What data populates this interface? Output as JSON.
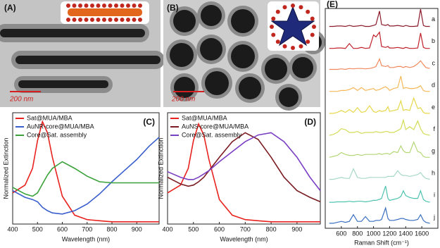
{
  "images": [
    {
      "label": "(A)",
      "scale_bar": "200 nm"
    },
    {
      "label": "(B)",
      "scale_bar": "200 nm"
    }
  ],
  "chart_data": [
    {
      "type": "line",
      "label": "(C)",
      "xlabel": "Wavelength (nm)",
      "ylabel": "Normalized Extinction",
      "x": [
        400,
        450,
        480,
        500,
        520,
        540,
        560,
        600,
        650,
        700,
        750,
        800,
        850,
        900,
        950,
        990
      ],
      "xlim": [
        400,
        990
      ],
      "xticks": [
        400,
        500,
        600,
        700,
        800,
        900
      ],
      "ylim": [
        0,
        1
      ],
      "legend": "upper left",
      "series": [
        {
          "name": "Sat@MUA/MBA",
          "color": "#e8231f",
          "values": [
            0.28,
            0.35,
            0.5,
            0.75,
            0.92,
            0.82,
            0.6,
            0.25,
            0.08,
            0.04,
            0.03,
            0.02,
            0.02,
            0.02,
            0.02,
            0.02
          ]
        },
        {
          "name": "AuNR-core@MUA/MBA",
          "color": "#3a5fcd",
          "values": [
            0.3,
            0.24,
            0.22,
            0.2,
            0.15,
            0.12,
            0.1,
            0.09,
            0.12,
            0.18,
            0.27,
            0.38,
            0.48,
            0.58,
            0.7,
            0.78
          ]
        },
        {
          "name": "Core@Sat. assembly",
          "color": "#3aa23a",
          "values": [
            0.33,
            0.27,
            0.25,
            0.28,
            0.36,
            0.44,
            0.5,
            0.56,
            0.5,
            0.43,
            0.38,
            0.37,
            0.37,
            0.37,
            0.37,
            0.37
          ]
        }
      ]
    },
    {
      "type": "line",
      "label": "(D)",
      "xlabel": "Wavelength (nm)",
      "ylabel": "Normalized Extinction",
      "x": [
        400,
        450,
        480,
        500,
        520,
        540,
        560,
        600,
        650,
        700,
        750,
        800,
        850,
        900,
        950,
        990
      ],
      "xlim": [
        400,
        990
      ],
      "xticks": [
        400,
        500,
        600,
        700,
        800,
        900
      ],
      "ylim": [
        0,
        1
      ],
      "legend": "upper left",
      "series": [
        {
          "name": "Sat@MUA/MBA",
          "color": "#e8231f",
          "values": [
            0.28,
            0.35,
            0.5,
            0.75,
            0.9,
            0.8,
            0.58,
            0.22,
            0.08,
            0.04,
            0.03,
            0.02,
            0.02,
            0.02,
            0.02,
            0.02
          ]
        },
        {
          "name": "AuNS-core@MUA/MBA",
          "color": "#7a1c22",
          "values": [
            0.42,
            0.36,
            0.34,
            0.35,
            0.38,
            0.42,
            0.48,
            0.6,
            0.74,
            0.82,
            0.76,
            0.6,
            0.42,
            0.3,
            0.24,
            0.2
          ]
        },
        {
          "name": "Core@Sat. assembly",
          "color": "#7b3fc4",
          "values": [
            0.47,
            0.42,
            0.4,
            0.4,
            0.42,
            0.45,
            0.48,
            0.56,
            0.65,
            0.74,
            0.8,
            0.82,
            0.74,
            0.6,
            0.42,
            0.3
          ]
        }
      ]
    },
    {
      "type": "ridgeline",
      "label": "(E)",
      "xlabel": "Raman Shift (cm⁻¹)",
      "x": [
        450,
        500,
        550,
        600,
        650,
        700,
        750,
        800,
        850,
        900,
        950,
        1000,
        1030,
        1075,
        1100,
        1150,
        1180,
        1200,
        1250,
        1300,
        1340,
        1370,
        1400,
        1450,
        1500,
        1550,
        1585,
        1620,
        1650,
        1700
      ],
      "xlim": [
        400,
        1800
      ],
      "xticks": [
        600,
        800,
        1000,
        1200,
        1400,
        1600
      ],
      "ylim": [
        0,
        1
      ],
      "series": [
        {
          "name": "a",
          "color": "#8b1a2b",
          "values": [
            0.1,
            0.1,
            0.12,
            0.12,
            0.1,
            0.15,
            0.1,
            0.12,
            0.15,
            0.1,
            0.1,
            0.15,
            0.2,
            0.9,
            0.2,
            0.15,
            0.2,
            0.12,
            0.12,
            0.15,
            0.12,
            0.1,
            0.15,
            0.1,
            0.1,
            0.12,
            1.0,
            0.15,
            0.1,
            0.1
          ]
        },
        {
          "name": "b",
          "color": "#c0202a",
          "values": [
            0.1,
            0.1,
            0.12,
            0.12,
            0.1,
            0.35,
            0.1,
            0.1,
            0.15,
            0.1,
            0.12,
            0.8,
            0.7,
            0.95,
            0.2,
            0.15,
            0.2,
            0.12,
            0.12,
            0.15,
            0.12,
            0.1,
            0.15,
            0.1,
            0.1,
            0.12,
            0.9,
            0.15,
            0.1,
            0.1
          ]
        },
        {
          "name": "c",
          "color": "#f08a5d",
          "values": [
            0.15,
            0.15,
            0.15,
            0.18,
            0.15,
            0.2,
            0.18,
            0.2,
            0.2,
            0.18,
            0.2,
            0.25,
            0.3,
            0.7,
            0.35,
            0.3,
            0.35,
            0.25,
            0.25,
            0.3,
            0.3,
            0.25,
            0.3,
            0.25,
            0.3,
            0.45,
            0.6,
            0.4,
            0.25,
            0.2
          ]
        },
        {
          "name": "d",
          "color": "#f5b95a",
          "values": [
            0.15,
            0.15,
            0.15,
            0.2,
            0.2,
            0.25,
            0.35,
            0.2,
            0.35,
            0.2,
            0.25,
            0.3,
            0.2,
            0.25,
            0.3,
            0.4,
            0.3,
            0.2,
            0.3,
            0.35,
            0.95,
            0.3,
            0.35,
            0.3,
            0.3,
            0.35,
            0.45,
            0.2,
            0.15,
            0.15
          ]
        },
        {
          "name": "e",
          "color": "#e6d84a",
          "values": [
            0.15,
            0.15,
            0.2,
            0.3,
            0.2,
            0.35,
            0.2,
            0.45,
            0.2,
            0.25,
            0.55,
            0.25,
            0.2,
            0.3,
            0.25,
            0.3,
            0.5,
            0.25,
            0.3,
            0.35,
            0.8,
            0.3,
            0.35,
            0.3,
            0.95,
            0.4,
            0.45,
            0.2,
            0.15,
            0.15
          ]
        },
        {
          "name": "f",
          "color": "#d2dc55",
          "values": [
            0.15,
            0.2,
            0.3,
            0.5,
            0.45,
            0.3,
            0.3,
            0.35,
            0.25,
            0.3,
            0.3,
            0.3,
            0.35,
            0.3,
            0.3,
            0.35,
            0.35,
            0.3,
            0.3,
            0.4,
            0.5,
            0.95,
            0.45,
            0.6,
            0.45,
            0.9,
            0.5,
            0.25,
            0.2,
            0.15
          ]
        },
        {
          "name": "g",
          "color": "#b5d778",
          "values": [
            0.15,
            0.2,
            0.25,
            0.4,
            0.3,
            0.25,
            0.25,
            0.3,
            0.25,
            0.3,
            0.3,
            0.3,
            0.3,
            0.35,
            0.3,
            0.35,
            0.35,
            0.3,
            0.45,
            0.4,
            0.75,
            0.5,
            0.4,
            0.4,
            0.95,
            0.45,
            0.4,
            0.2,
            0.15,
            0.15
          ]
        },
        {
          "name": "h",
          "color": "#a8d8c8",
          "values": [
            0.15,
            0.15,
            0.2,
            0.25,
            0.2,
            0.2,
            0.7,
            0.25,
            0.2,
            0.2,
            0.25,
            0.25,
            0.25,
            0.25,
            0.25,
            0.25,
            0.3,
            0.3,
            0.3,
            0.6,
            0.4,
            0.35,
            0.35,
            0.3,
            0.35,
            0.4,
            0.5,
            0.3,
            0.2,
            0.15
          ]
        },
        {
          "name": "i",
          "color": "#4fc3b0",
          "values": [
            0.1,
            0.1,
            0.12,
            0.12,
            0.12,
            0.15,
            0.12,
            0.15,
            0.15,
            0.12,
            0.15,
            0.2,
            0.2,
            0.25,
            0.3,
            0.95,
            0.3,
            0.2,
            0.25,
            0.3,
            0.4,
            0.7,
            0.45,
            0.35,
            0.3,
            0.3,
            0.7,
            0.25,
            0.15,
            0.1
          ]
        },
        {
          "name": "j",
          "color": "#3a6fc0",
          "values": [
            0.15,
            0.15,
            0.2,
            0.25,
            0.2,
            0.25,
            0.6,
            0.25,
            0.25,
            0.5,
            0.25,
            0.25,
            0.3,
            0.3,
            0.35,
            0.95,
            0.4,
            0.3,
            0.3,
            0.35,
            0.4,
            0.4,
            0.35,
            0.3,
            0.3,
            0.35,
            0.6,
            0.3,
            0.2,
            0.15
          ]
        }
      ]
    }
  ]
}
